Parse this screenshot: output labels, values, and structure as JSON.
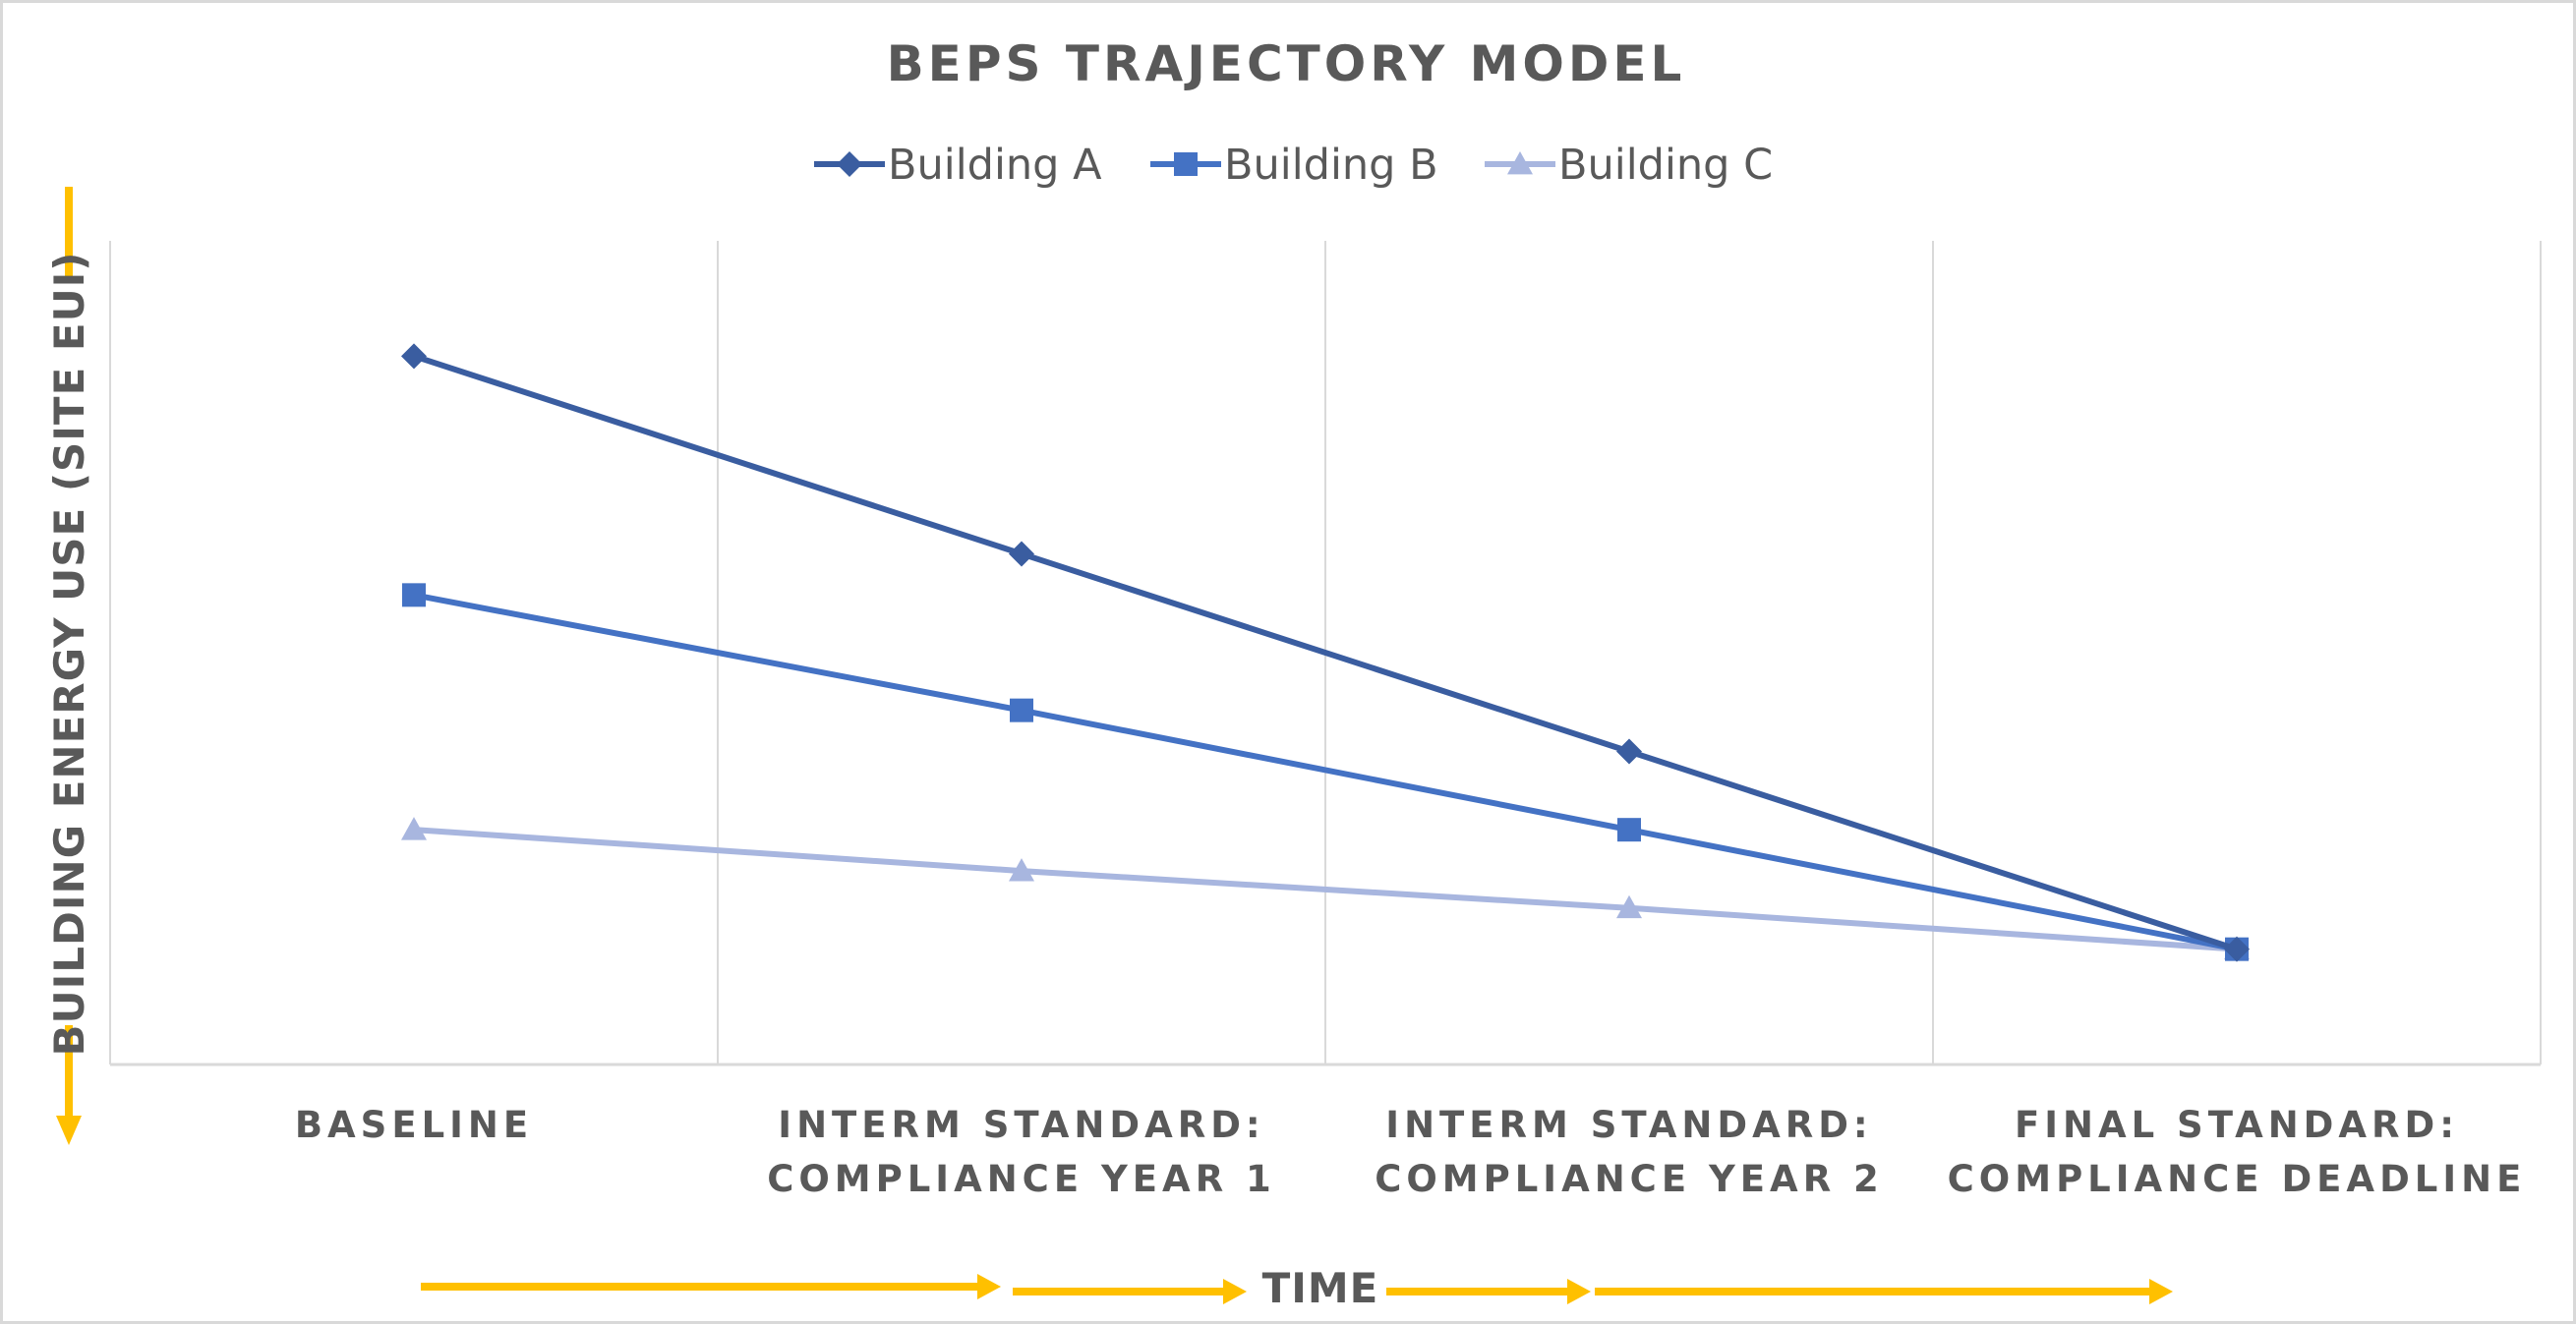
{
  "chart_data": {
    "type": "line",
    "title": "BEPS TRAJECTORY MODEL",
    "categories": [
      [
        "BASELINE"
      ],
      [
        "INTERM STANDARD:",
        "COMPLIANCE YEAR 1"
      ],
      [
        "INTERM STANDARD:",
        "COMPLIANCE YEAR 2"
      ],
      [
        "FINAL STANDARD:",
        "COMPLIANCE DEADLINE"
      ]
    ],
    "xlabel": "TIME",
    "ylabel": "BUILDING ENERGY USE (SITE EUI)",
    "ylim": [
      0,
      100
    ],
    "y_ticks_shown": false,
    "grid": "vertical",
    "legend": "top",
    "series": [
      {
        "name": "Building A",
        "marker": "diamond",
        "color": "#3a5da0",
        "values": [
          86,
          62,
          38,
          14
        ]
      },
      {
        "name": "Building B",
        "marker": "square",
        "color": "#4472c4",
        "values": [
          57,
          43,
          28.5,
          14
        ]
      },
      {
        "name": "Building C",
        "marker": "triangle",
        "color": "#a8b6df",
        "values": [
          28.5,
          23.5,
          19,
          14
        ]
      }
    ],
    "accent_color": "#ffc000",
    "text_color": "#595959",
    "gridline_color": "#d9d9d9"
  }
}
